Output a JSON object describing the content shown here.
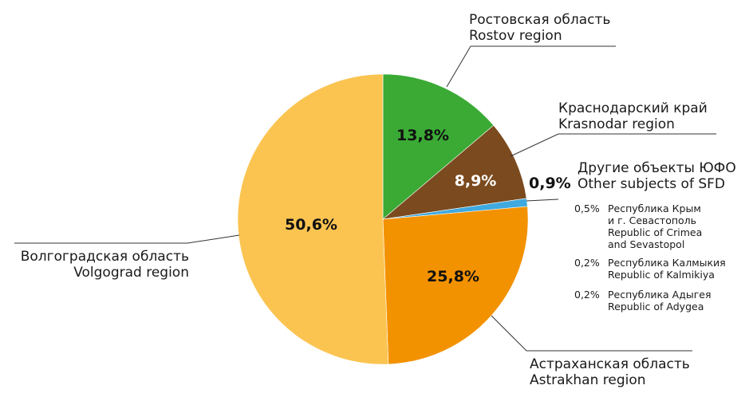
{
  "chart_data": {
    "type": "pie",
    "slices": [
      {
        "key": "rostov",
        "value": 13.8,
        "label": "13,8%",
        "name_ru": "Ростовская область",
        "name_en": "Rostov region",
        "color": "#3aaa35"
      },
      {
        "key": "krasnodar",
        "value": 8.9,
        "label": "8,9%",
        "name_ru": "Краснодарский край",
        "name_en": "Krasnodar region",
        "color": "#7b4a1e"
      },
      {
        "key": "other",
        "value": 0.9,
        "label": "0,9%",
        "name_ru": "Другие объекты ЮФО",
        "name_en": "Other subjects of SFD",
        "color": "#3fa9e0"
      },
      {
        "key": "astrakhan",
        "value": 25.8,
        "label": "25,8%",
        "name_ru": "Астраханская область",
        "name_en": "Astrakhan region",
        "color": "#f39200"
      },
      {
        "key": "volgograd",
        "value": 50.6,
        "label": "50,6%",
        "name_ru": "Волгоградская область",
        "name_en": "Volgograd region",
        "color": "#fbc451"
      }
    ],
    "other_breakdown": [
      {
        "value": "0,5%",
        "lines": [
          "Республика Крым",
          "и г. Севастополь",
          "Republic of Crimea",
          "and Sevastopol"
        ]
      },
      {
        "value": "0,2%",
        "lines": [
          "Республика Калмыкия",
          "Republic of Kalmikiya"
        ]
      },
      {
        "value": "0,2%",
        "lines": [
          "Республика Адыгея",
          "Republic of Adygea"
        ]
      }
    ]
  }
}
